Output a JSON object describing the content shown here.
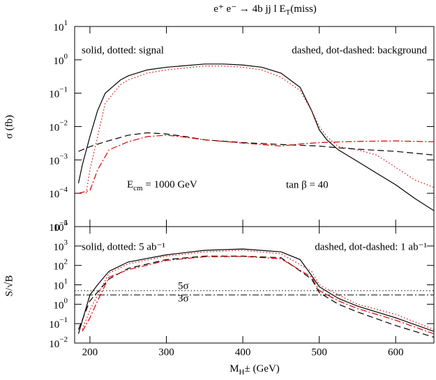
{
  "chart_data": [
    {
      "type": "line",
      "yscale": "log",
      "title": {
        "main": "e⁺ e⁻ →  4b jj l E",
        "sub": "T",
        "tail": "(miss)"
      },
      "ylabel": "σ (fb)",
      "ylim": [
        1e-05,
        10
      ],
      "yticks": [
        {
          "value": 1e-05,
          "label": "10",
          "power": "−5"
        },
        {
          "value": 0.0001,
          "label": "10",
          "power": "−4"
        },
        {
          "value": 0.001,
          "label": "10",
          "power": "−3"
        },
        {
          "value": 0.01,
          "label": "10",
          "power": "−2"
        },
        {
          "value": 0.1,
          "label": "10",
          "power": "−1"
        },
        {
          "value": 1,
          "label": "10",
          "power": "0"
        },
        {
          "value": 10,
          "label": "10",
          "power": "1"
        }
      ],
      "annotations": {
        "left": "solid, dotted: signal",
        "right": "dashed, dot-dashed: background",
        "energy": {
          "main": "E",
          "sub": "cm",
          "tail": " = 1000 GeV"
        },
        "tanb": "tan β = 40"
      },
      "series": [
        {
          "color": "#000000",
          "dash": "solid",
          "x": [
            185,
            190,
            200,
            210,
            220,
            240,
            250,
            275,
            300,
            350,
            375,
            400,
            425,
            450,
            475,
            490,
            500,
            510,
            525,
            550,
            575,
            600,
            625,
            650
          ],
          "values": [
            0.0002,
            0.0007,
            0.005,
            0.03,
            0.1,
            0.25,
            0.33,
            0.5,
            0.6,
            0.75,
            0.75,
            0.7,
            0.6,
            0.4,
            0.15,
            0.03,
            0.008,
            0.004,
            0.002,
            0.0009,
            0.0004,
            0.00018,
            7e-05,
            3e-05
          ]
        },
        {
          "color": "#e00000",
          "dash": "dotted",
          "x": [
            195,
            200,
            210,
            220,
            240,
            250,
            275,
            300,
            350,
            375,
            400,
            425,
            450,
            475,
            490,
            500,
            510,
            525,
            550,
            575,
            600,
            625,
            650
          ],
          "values": [
            0.0001,
            0.0005,
            0.005,
            0.05,
            0.18,
            0.25,
            0.4,
            0.5,
            0.65,
            0.65,
            0.6,
            0.5,
            0.3,
            0.12,
            0.03,
            0.01,
            0.005,
            0.0025,
            0.002,
            0.0014,
            0.0006,
            0.00025,
            0.00015
          ]
        },
        {
          "color": "#000000",
          "dash": "dashed",
          "x": [
            185,
            200,
            220,
            250,
            275,
            300,
            325,
            350,
            400,
            450,
            500,
            525,
            550,
            600,
            650
          ],
          "values": [
            0.0018,
            0.0025,
            0.0035,
            0.0055,
            0.0065,
            0.006,
            0.005,
            0.004,
            0.0033,
            0.0029,
            0.0026,
            0.0023,
            0.0021,
            0.0018,
            0.0014
          ]
        },
        {
          "color": "#e00000",
          "dash": "dashdot",
          "x": [
            185,
            200,
            210,
            225,
            250,
            275,
            300,
            325,
            350,
            400,
            450,
            475,
            500,
            550,
            600,
            650
          ],
          "values": [
            0.0001,
            0.00012,
            0.0005,
            0.002,
            0.0035,
            0.005,
            0.0055,
            0.0048,
            0.004,
            0.0032,
            0.0026,
            0.003,
            0.0033,
            0.0036,
            0.0037,
            0.0035
          ]
        }
      ]
    },
    {
      "type": "line",
      "yscale": "log",
      "ylabel": "S/√B",
      "xlabel": {
        "main": "M",
        "sub": "H",
        "tail": "± (GeV)"
      },
      "xlim": [
        180,
        650
      ],
      "xticks": [
        200,
        300,
        400,
        500,
        600
      ],
      "ylim": [
        0.01,
        10000
      ],
      "yticks": [
        {
          "value": 0.01,
          "label": "10",
          "power": "−2"
        },
        {
          "value": 0.1,
          "label": "10",
          "power": "−1"
        },
        {
          "value": 1,
          "label": "10",
          "power": "0"
        },
        {
          "value": 10,
          "label": "10",
          "power": "1"
        },
        {
          "value": 100,
          "label": "10",
          "power": "2"
        },
        {
          "value": 1000,
          "label": "10",
          "power": "3"
        },
        {
          "value": 10000,
          "label": "10",
          "power": "4"
        }
      ],
      "annotations": {
        "left": "solid, dotted:  5 ab⁻¹",
        "right": "dashed, dot-dashed: 1 ab⁻¹"
      },
      "hlines": [
        {
          "value": 5,
          "label": "5σ",
          "color": "#000000",
          "dash": "dotted"
        },
        {
          "value": 3,
          "label": "3σ",
          "color": "#000000",
          "dash": "dashdot"
        }
      ],
      "series": [
        {
          "color": "#000000",
          "dash": "solid",
          "x": [
            185,
            200,
            210,
            225,
            250,
            300,
            350,
            400,
            450,
            475,
            490,
            500,
            525,
            550,
            600,
            650
          ],
          "values": [
            0.03,
            3,
            10,
            50,
            150,
            350,
            600,
            700,
            500,
            200,
            30,
            8,
            2,
            0.8,
            0.2,
            0.04
          ]
        },
        {
          "color": "#e00000",
          "dash": "dotted",
          "x": [
            190,
            200,
            210,
            225,
            250,
            300,
            350,
            400,
            450,
            490,
            500,
            525,
            550,
            600,
            650
          ],
          "values": [
            0.05,
            0.5,
            3,
            40,
            120,
            300,
            500,
            600,
            400,
            50,
            10,
            3,
            1,
            0.3,
            0.05
          ]
        },
        {
          "color": "#000000",
          "dash": "dashed",
          "x": [
            185,
            200,
            225,
            250,
            300,
            350,
            400,
            450,
            490,
            500,
            525,
            550,
            600,
            650
          ],
          "values": [
            0.05,
            1.5,
            20,
            70,
            200,
            300,
            300,
            250,
            20,
            4,
            1,
            0.4,
            0.08,
            0.02
          ]
        },
        {
          "color": "#e00000",
          "dash": "dashdot",
          "x": [
            190,
            200,
            210,
            225,
            250,
            300,
            350,
            400,
            450,
            490,
            500,
            525,
            550,
            600,
            650
          ],
          "values": [
            0.04,
            0.2,
            1.5,
            25,
            60,
            180,
            280,
            290,
            220,
            25,
            5,
            1.5,
            0.6,
            0.15,
            0.03
          ]
        }
      ]
    }
  ]
}
